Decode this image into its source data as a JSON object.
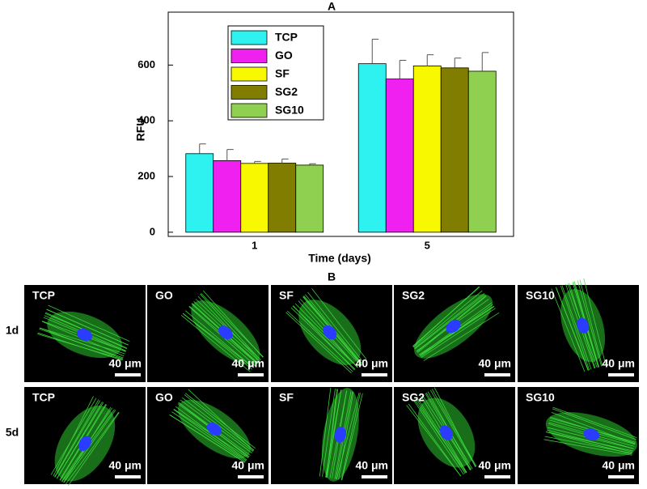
{
  "chart_data": {
    "type": "bar",
    "title": "A",
    "x_label": "Time (days)",
    "y_label": "RFU",
    "categories": [
      "1",
      "5"
    ],
    "series": [
      {
        "name": "TCP",
        "color": "#2ef2f0",
        "values": [
          282,
          605
        ],
        "errors": [
          35,
          88
        ]
      },
      {
        "name": "GO",
        "color": "#f020f0",
        "values": [
          257,
          550
        ],
        "errors": [
          40,
          67
        ]
      },
      {
        "name": "SF",
        "color": "#f8f800",
        "values": [
          247,
          597
        ],
        "errors": [
          7,
          40
        ]
      },
      {
        "name": "SG2",
        "color": "#807d00",
        "values": [
          248,
          590
        ],
        "errors": [
          15,
          35
        ]
      },
      {
        "name": "SG10",
        "color": "#90d050",
        "values": [
          241,
          578
        ],
        "errors": [
          5,
          67
        ]
      }
    ],
    "ylim": [
      -15,
      790
    ],
    "yticks": [
      0,
      200,
      400,
      600
    ],
    "legend": "upper-left"
  },
  "panel_b": {
    "title": "B",
    "rows": [
      {
        "label": "1d",
        "cells": [
          "TCP",
          "GO",
          "SF",
          "SG2",
          "SG10"
        ],
        "scale_bars": [
          "40 μm",
          "40 μm",
          "40 μm",
          "40 μm",
          "40 μm"
        ]
      },
      {
        "label": "5d",
        "cells": [
          "TCP",
          "GO",
          "SF",
          "SG2",
          "SG10"
        ],
        "scale_bars": [
          "40 μm",
          "40 μm",
          "40 μm",
          "40 μm",
          "40 μm"
        ]
      }
    ]
  }
}
